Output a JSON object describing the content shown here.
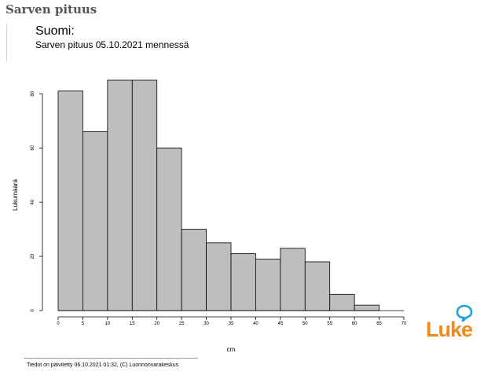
{
  "page": {
    "title": "Sarven pituus"
  },
  "chart_heading": "Suomi:",
  "chart_subheading": "Sarven pituus 05.10.2021 mennessä",
  "footer": {
    "text": "Tiedot on päivitetty 06.10.2021 01:32, (C) Luonnonvarakeskus"
  },
  "logo": {
    "text": "Luke",
    "color": "#f08a1c",
    "bubble_color": "#1ea0d8"
  },
  "chart_data": {
    "type": "bar",
    "title": "",
    "xlabel": "cm",
    "ylabel": "Lukumäärä",
    "bin_edges": [
      0,
      5,
      10,
      15,
      20,
      25,
      30,
      35,
      40,
      45,
      50,
      55,
      60,
      65,
      70
    ],
    "values": [
      81,
      66,
      85,
      85,
      60,
      30,
      25,
      21,
      19,
      23,
      18,
      6,
      2,
      0
    ],
    "xlim": [
      0,
      70
    ],
    "ylim": [
      0,
      85
    ],
    "x_ticks": [
      "0",
      "5",
      "10",
      "15",
      "20",
      "25",
      "30",
      "35",
      "40",
      "45",
      "50",
      "55",
      "60",
      "65",
      "70"
    ],
    "y_ticks": [
      "0",
      "20",
      "40",
      "60",
      "80"
    ],
    "bar_color": "#bebebe",
    "grid": false
  }
}
